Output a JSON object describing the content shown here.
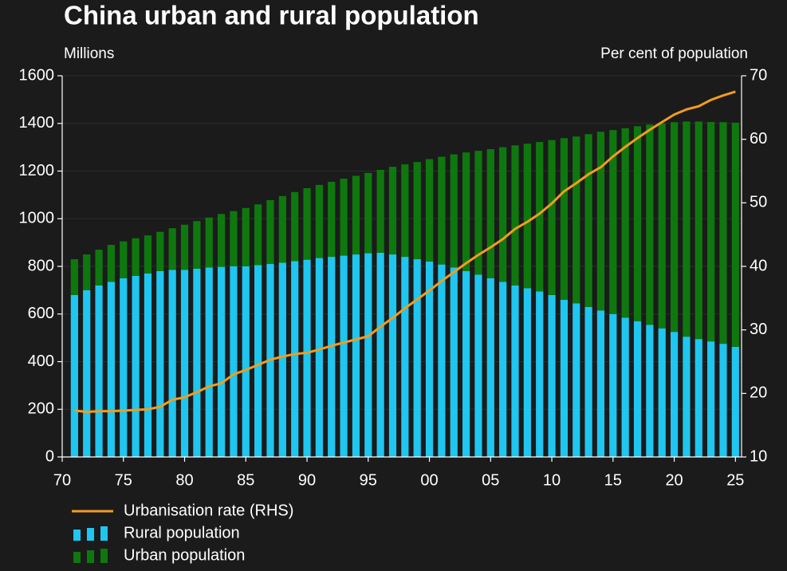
{
  "chart_data": {
    "type": "bar",
    "stacked": true,
    "title": "China urban and rural population",
    "y_label": "Millions",
    "y2_label": "Per cent of population",
    "x": [
      1971,
      1972,
      1973,
      1974,
      1975,
      1976,
      1977,
      1978,
      1979,
      1980,
      1981,
      1982,
      1983,
      1984,
      1985,
      1986,
      1987,
      1988,
      1989,
      1990,
      1991,
      1992,
      1993,
      1994,
      1995,
      1996,
      1997,
      1998,
      1999,
      2000,
      2001,
      2002,
      2003,
      2004,
      2005,
      2006,
      2007,
      2008,
      2009,
      2010,
      2011,
      2012,
      2013,
      2014,
      2015,
      2016,
      2017,
      2018,
      2019,
      2020,
      2021,
      2022,
      2023,
      2024,
      2025
    ],
    "xlim": [
      1970,
      2025.5
    ],
    "xticks": [
      {
        "value": 1970,
        "label": "70"
      },
      {
        "value": 1975,
        "label": "75"
      },
      {
        "value": 1980,
        "label": "80"
      },
      {
        "value": 1985,
        "label": "85"
      },
      {
        "value": 1990,
        "label": "90"
      },
      {
        "value": 1995,
        "label": "95"
      },
      {
        "value": 2000,
        "label": "00"
      },
      {
        "value": 2005,
        "label": "05"
      },
      {
        "value": 2010,
        "label": "10"
      },
      {
        "value": 2015,
        "label": "15"
      },
      {
        "value": 2020,
        "label": "20"
      },
      {
        "value": 2025,
        "label": "25"
      }
    ],
    "ylim": [
      0,
      1600
    ],
    "yticks": [
      0,
      200,
      400,
      600,
      800,
      1000,
      1200,
      1400,
      1600
    ],
    "y2lim": [
      10,
      70
    ],
    "y2ticks": [
      10,
      20,
      30,
      40,
      50,
      60,
      70
    ],
    "grid": true,
    "series": [
      {
        "name": "Urbanisation rate (RHS)",
        "type": "line",
        "axis": "y2",
        "color": "#f29c1f",
        "values": [
          17.3,
          17.1,
          17.2,
          17.2,
          17.3,
          17.4,
          17.5,
          17.9,
          19.0,
          19.4,
          20.2,
          21.1,
          21.6,
          23.0,
          23.7,
          24.5,
          25.3,
          25.8,
          26.2,
          26.4,
          26.9,
          27.5,
          28.0,
          28.5,
          29.0,
          30.5,
          31.9,
          33.4,
          34.8,
          36.2,
          37.7,
          39.1,
          40.5,
          41.8,
          43.0,
          44.3,
          45.9,
          47.0,
          48.3,
          49.9,
          51.8,
          53.1,
          54.5,
          55.6,
          57.3,
          58.8,
          60.2,
          61.5,
          62.7,
          63.9,
          64.7,
          65.2,
          66.2,
          66.9,
          67.5
        ]
      },
      {
        "name": "Rural population",
        "type": "bar",
        "color": "#1ec6f0",
        "values": [
          680,
          700,
          720,
          735,
          750,
          760,
          770,
          780,
          785,
          785,
          790,
          795,
          798,
          800,
          800,
          805,
          810,
          815,
          822,
          828,
          835,
          840,
          845,
          850,
          855,
          857,
          850,
          840,
          830,
          820,
          808,
          795,
          780,
          765,
          750,
          735,
          720,
          708,
          695,
          680,
          660,
          645,
          630,
          615,
          600,
          585,
          570,
          555,
          540,
          525,
          505,
          495,
          485,
          475,
          462
        ]
      },
      {
        "name": "Urban population",
        "type": "bar",
        "color": "#0e780e",
        "values": [
          150,
          150,
          150,
          155,
          155,
          158,
          160,
          165,
          175,
          190,
          200,
          210,
          222,
          232,
          245,
          255,
          268,
          280,
          290,
          300,
          307,
          315,
          323,
          330,
          337,
          348,
          368,
          388,
          408,
          430,
          452,
          475,
          498,
          520,
          542,
          565,
          588,
          607,
          627,
          650,
          678,
          700,
          725,
          750,
          772,
          795,
          818,
          840,
          860,
          880,
          903,
          913,
          921,
          930,
          941
        ]
      }
    ]
  }
}
